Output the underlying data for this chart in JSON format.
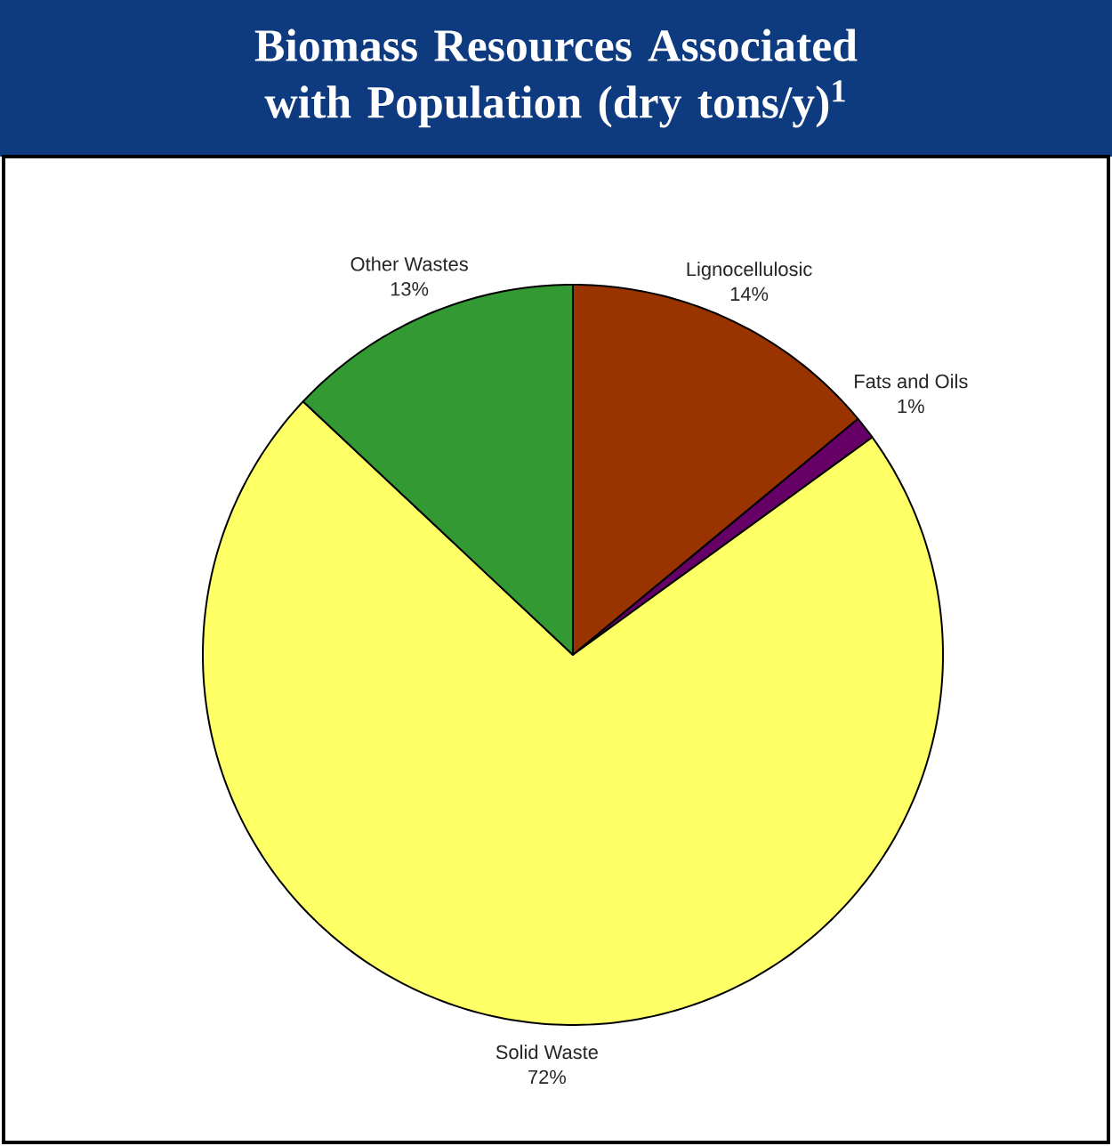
{
  "chart_data": {
    "type": "pie",
    "title": "Biomass Resources Associated with Population (dry tons/y)$^{1}$",
    "categories": [
      "Lignocellulosic",
      "Fats and Oils",
      "Solid Waste",
      "Other Wastes"
    ],
    "values": [
      14,
      1,
      72,
      13
    ],
    "colors": [
      "#993300",
      "#660066",
      "#ffff66",
      "#339933"
    ],
    "value_labels": [
      "14%",
      "1%",
      "72%",
      "13%"
    ]
  }
}
